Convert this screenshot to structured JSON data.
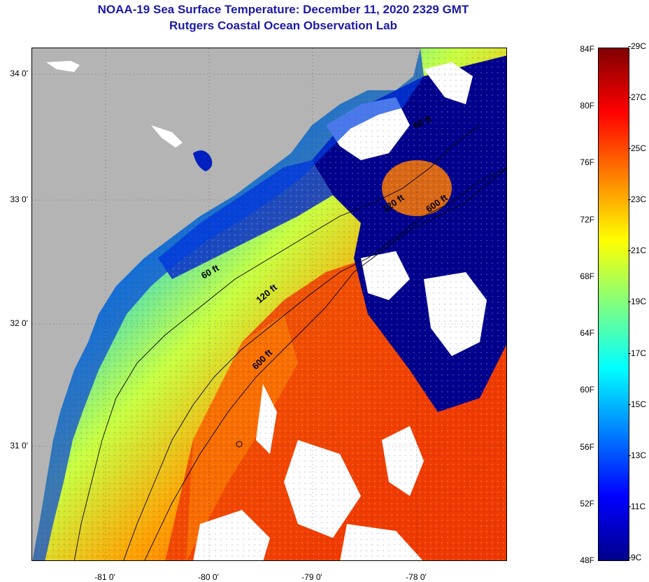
{
  "header": {
    "title": "NOAA-19 Sea Surface Temperature:  December 11, 2020 2329 GMT",
    "subtitle": "Rutgers Coastal Ocean Observation Lab"
  },
  "map": {
    "latitude_labels": [
      "34 0'",
      "33 0'",
      "32 0'",
      "31 0'"
    ],
    "longitude_labels": [
      "-81 0'",
      "-80 0'",
      "-79 0'",
      "-78 0'"
    ],
    "contour_labels": [
      "60 ft",
      "120 ft",
      "600 ft",
      "120 ft",
      "600 ft",
      "60 ft"
    ],
    "colors": {
      "land": "#b4b4b4",
      "cloud": "#ffffff",
      "cold": "#00008c",
      "warm": "#f03c00"
    }
  },
  "colorbar": {
    "fahrenheit_labels": [
      "84F",
      "80F",
      "76F",
      "72F",
      "68F",
      "64F",
      "60F",
      "56F",
      "52F",
      "48F"
    ],
    "celsius_labels": [
      "29C",
      "27C",
      "25C",
      "23C",
      "21C",
      "19C",
      "17C",
      "15C",
      "13C",
      "11C",
      "9C"
    ],
    "range_f": [
      48,
      84
    ],
    "colormap": [
      "#00008c",
      "#0000ff",
      "#0080ff",
      "#00ffff",
      "#80ff80",
      "#ffff00",
      "#ff8000",
      "#ff0000",
      "#800000"
    ]
  }
}
